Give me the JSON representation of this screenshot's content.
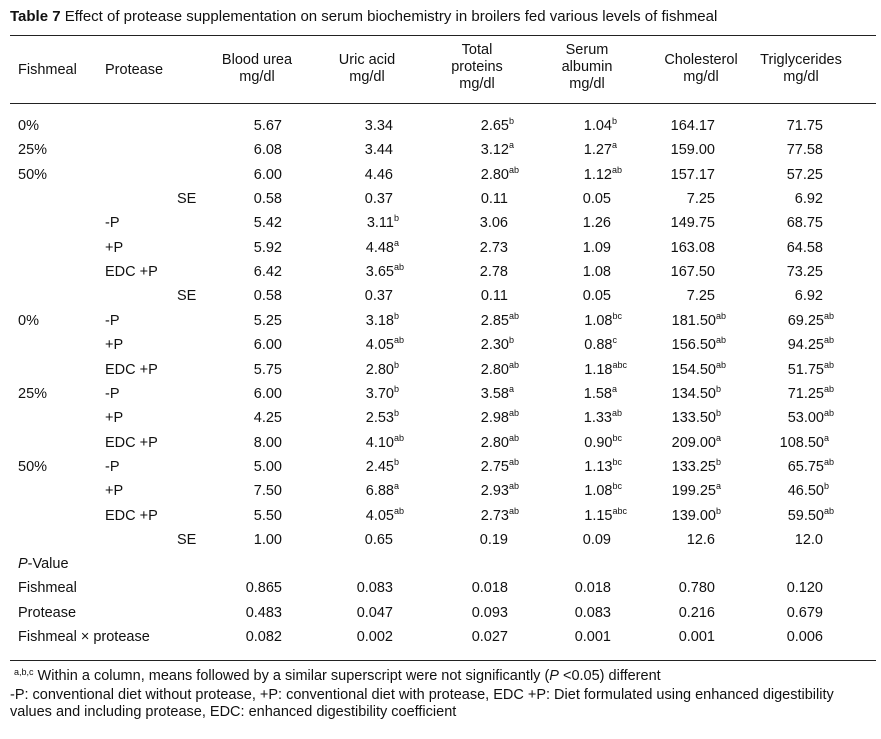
{
  "caption": {
    "label": "Table 7",
    "text": "Effect of protease supplementation on serum biochemistry in broilers fed various levels of fishmeal"
  },
  "headers": [
    {
      "key": "fishmeal",
      "lines": [
        "Fishmeal"
      ]
    },
    {
      "key": "protease",
      "lines": [
        "Protease"
      ]
    },
    {
      "key": "urea",
      "lines": [
        "Blood urea",
        "mg/dl"
      ]
    },
    {
      "key": "uric",
      "lines": [
        "Uric acid",
        "mg/dl"
      ]
    },
    {
      "key": "protein",
      "lines": [
        "Total",
        "proteins",
        "mg/dl"
      ]
    },
    {
      "key": "albumin",
      "lines": [
        "Serum",
        "albumin",
        "mg/dl"
      ]
    },
    {
      "key": "chol",
      "lines": [
        "Cholesterol",
        "mg/dl"
      ]
    },
    {
      "key": "trig",
      "lines": [
        "Triglycerides",
        "mg/dl"
      ]
    }
  ],
  "rows": [
    {
      "fishmeal": "0%",
      "protease": "",
      "se": "",
      "values": [
        [
          "5.67",
          ""
        ],
        [
          "3.34",
          ""
        ],
        [
          "2.65",
          "b"
        ],
        [
          "1.04",
          "b"
        ],
        [
          "164.17",
          ""
        ],
        [
          "71.75",
          ""
        ]
      ]
    },
    {
      "fishmeal": "25%",
      "protease": "",
      "se": "",
      "values": [
        [
          "6.08",
          ""
        ],
        [
          "3.44",
          ""
        ],
        [
          "3.12",
          "a"
        ],
        [
          "1.27",
          "a"
        ],
        [
          "159.00",
          ""
        ],
        [
          "77.58",
          ""
        ]
      ]
    },
    {
      "fishmeal": "50%",
      "protease": "",
      "se": "",
      "values": [
        [
          "6.00",
          ""
        ],
        [
          "4.46",
          ""
        ],
        [
          "2.80",
          "ab"
        ],
        [
          "1.12",
          "ab"
        ],
        [
          "157.17",
          ""
        ],
        [
          "57.25",
          ""
        ]
      ]
    },
    {
      "fishmeal": "",
      "protease": "",
      "se": "SE",
      "values": [
        [
          "0.58",
          ""
        ],
        [
          "0.37",
          ""
        ],
        [
          "0.11",
          ""
        ],
        [
          "0.05",
          ""
        ],
        [
          "7.25",
          ""
        ],
        [
          "6.92",
          ""
        ]
      ]
    },
    {
      "fishmeal": "",
      "protease": "-P",
      "se": "",
      "values": [
        [
          "5.42",
          ""
        ],
        [
          "3.11",
          "b"
        ],
        [
          "3.06",
          ""
        ],
        [
          "1.26",
          ""
        ],
        [
          "149.75",
          ""
        ],
        [
          "68.75",
          ""
        ]
      ]
    },
    {
      "fishmeal": "",
      "protease": "+P",
      "se": "",
      "values": [
        [
          "5.92",
          ""
        ],
        [
          "4.48",
          "a"
        ],
        [
          "2.73",
          ""
        ],
        [
          "1.09",
          ""
        ],
        [
          "163.08",
          ""
        ],
        [
          "64.58",
          ""
        ]
      ]
    },
    {
      "fishmeal": "",
      "protease": "EDC +P",
      "se": "",
      "values": [
        [
          "6.42",
          ""
        ],
        [
          "3.65",
          "ab"
        ],
        [
          "2.78",
          ""
        ],
        [
          "1.08",
          ""
        ],
        [
          "167.50",
          ""
        ],
        [
          "73.25",
          ""
        ]
      ]
    },
    {
      "fishmeal": "",
      "protease": "",
      "se": "SE",
      "values": [
        [
          "0.58",
          ""
        ],
        [
          "0.37",
          ""
        ],
        [
          "0.11",
          ""
        ],
        [
          "0.05",
          ""
        ],
        [
          "7.25",
          ""
        ],
        [
          "6.92",
          ""
        ]
      ]
    },
    {
      "fishmeal": "0%",
      "protease": "-P",
      "se": "",
      "values": [
        [
          "5.25",
          ""
        ],
        [
          "3.18",
          "b"
        ],
        [
          "2.85",
          "ab"
        ],
        [
          "1.08",
          "bc"
        ],
        [
          "181.50",
          "ab"
        ],
        [
          "69.25",
          "ab"
        ]
      ]
    },
    {
      "fishmeal": "",
      "protease": "+P",
      "se": "",
      "values": [
        [
          "6.00",
          ""
        ],
        [
          "4.05",
          "ab"
        ],
        [
          "2.30",
          "b"
        ],
        [
          "0.88",
          "c"
        ],
        [
          "156.50",
          "ab"
        ],
        [
          "94.25",
          "ab"
        ]
      ]
    },
    {
      "fishmeal": "",
      "protease": "EDC +P",
      "se": "",
      "values": [
        [
          "5.75",
          ""
        ],
        [
          "2.80",
          "b"
        ],
        [
          "2.80",
          "ab"
        ],
        [
          "1.18",
          "abc"
        ],
        [
          "154.50",
          "ab"
        ],
        [
          "51.75",
          "ab"
        ]
      ]
    },
    {
      "fishmeal": "25%",
      "protease": "-P",
      "se": "",
      "values": [
        [
          "6.00",
          ""
        ],
        [
          "3.70",
          "b"
        ],
        [
          "3.58",
          "a"
        ],
        [
          "1.58",
          "a"
        ],
        [
          "134.50",
          "b"
        ],
        [
          "71.25",
          "ab"
        ]
      ]
    },
    {
      "fishmeal": "",
      "protease": "+P",
      "se": "",
      "values": [
        [
          "4.25",
          ""
        ],
        [
          "2.53",
          "b"
        ],
        [
          "2.98",
          "ab"
        ],
        [
          "1.33",
          "ab"
        ],
        [
          "133.50",
          "b"
        ],
        [
          "53.00",
          "ab"
        ]
      ]
    },
    {
      "fishmeal": "",
      "protease": "EDC +P",
      "se": "",
      "values": [
        [
          "8.00",
          ""
        ],
        [
          "4.10",
          "ab"
        ],
        [
          "2.80",
          "ab"
        ],
        [
          "0.90",
          "bc"
        ],
        [
          "209.00",
          "a"
        ],
        [
          "108.50",
          "a"
        ]
      ]
    },
    {
      "fishmeal": "50%",
      "protease": "-P",
      "se": "",
      "values": [
        [
          "5.00",
          ""
        ],
        [
          "2.45",
          "b"
        ],
        [
          "2.75",
          "ab"
        ],
        [
          "1.13",
          "bc"
        ],
        [
          "133.25",
          "b"
        ],
        [
          "65.75",
          "ab"
        ]
      ]
    },
    {
      "fishmeal": "",
      "protease": "+P",
      "se": "",
      "values": [
        [
          "7.50",
          ""
        ],
        [
          "6.88",
          "a"
        ],
        [
          "2.93",
          "ab"
        ],
        [
          "1.08",
          "bc"
        ],
        [
          "199.25",
          "a"
        ],
        [
          "46.50",
          "b"
        ]
      ]
    },
    {
      "fishmeal": "",
      "protease": "EDC +P",
      "se": "",
      "values": [
        [
          "5.50",
          ""
        ],
        [
          "4.05",
          "ab"
        ],
        [
          "2.73",
          "ab"
        ],
        [
          "1.15",
          "abc"
        ],
        [
          "139.00",
          "b"
        ],
        [
          "59.50",
          "ab"
        ]
      ]
    },
    {
      "fishmeal": "",
      "protease": "",
      "se": "SE",
      "values": [
        [
          "1.00",
          ""
        ],
        [
          "0.65",
          ""
        ],
        [
          "0.19",
          ""
        ],
        [
          "0.09",
          ""
        ],
        [
          "12.6",
          ""
        ],
        [
          "12.0",
          ""
        ]
      ]
    }
  ],
  "pvalue": {
    "heading_italic": "P",
    "heading_rest": "-Value",
    "rows": [
      {
        "label": "Fishmeal",
        "values": [
          "0.865",
          "0.083",
          "0.018",
          "0.018",
          "0.780",
          "0.120"
        ]
      },
      {
        "label": "Protease",
        "values": [
          "0.483",
          "0.047",
          "0.093",
          "0.083",
          "0.216",
          "0.679"
        ]
      },
      {
        "label": "Fishmeal × protease",
        "values": [
          "0.082",
          "0.002",
          "0.027",
          "0.001",
          "0.001",
          "0.006"
        ]
      }
    ]
  },
  "footnotes": {
    "sig_sup": "a,b,c",
    "sig_text_1": "Within a column, means followed by a similar superscript were not significantly (",
    "sig_italic": "P",
    "sig_text_2": " <0.05) different",
    "abbrev": "-P: conventional diet without protease, +P: conventional diet with protease, EDC +P: Diet formulated using enhanced digestibility values and including protease, EDC: enhanced digestibility coefficient"
  }
}
